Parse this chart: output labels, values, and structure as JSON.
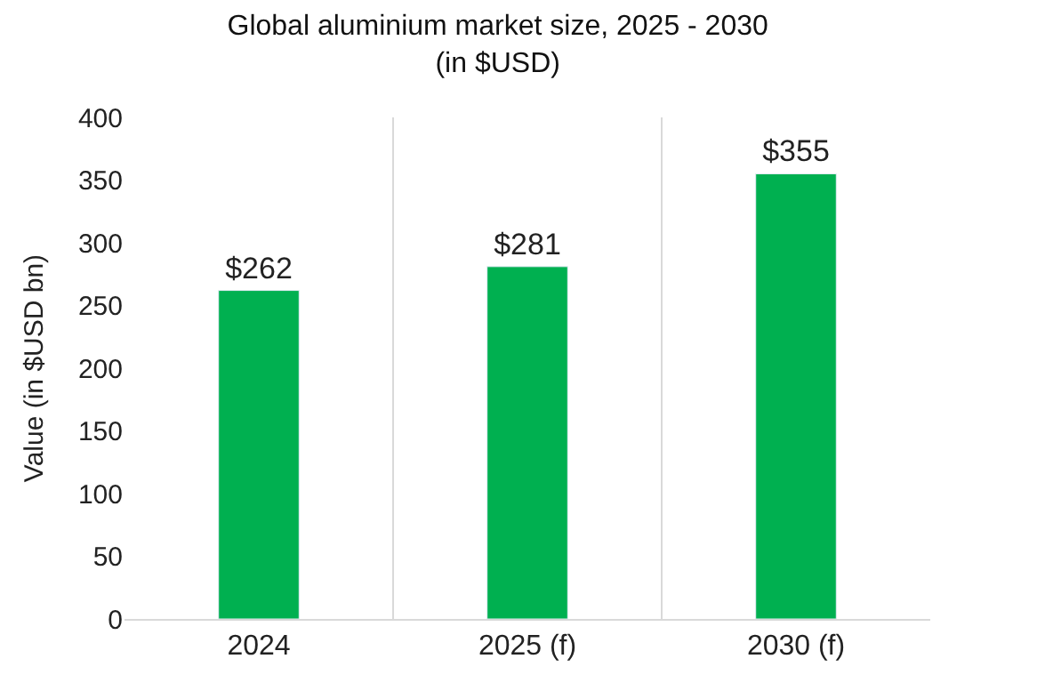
{
  "chart_data": {
    "type": "bar",
    "title": "Global aluminium market size, 2025 - 2030\n(in $USD)",
    "ylabel": "Value (in $USD bn)",
    "categories": [
      "2024",
      "2025 (f)",
      "2030 (f)"
    ],
    "values": [
      262,
      281,
      355
    ],
    "value_labels": [
      "$262",
      "$281",
      "$355"
    ],
    "color": "#00b050",
    "ylim": [
      0,
      400
    ],
    "yticks": [
      0,
      50,
      100,
      150,
      200,
      250,
      300,
      350,
      400
    ],
    "grid": "x"
  }
}
